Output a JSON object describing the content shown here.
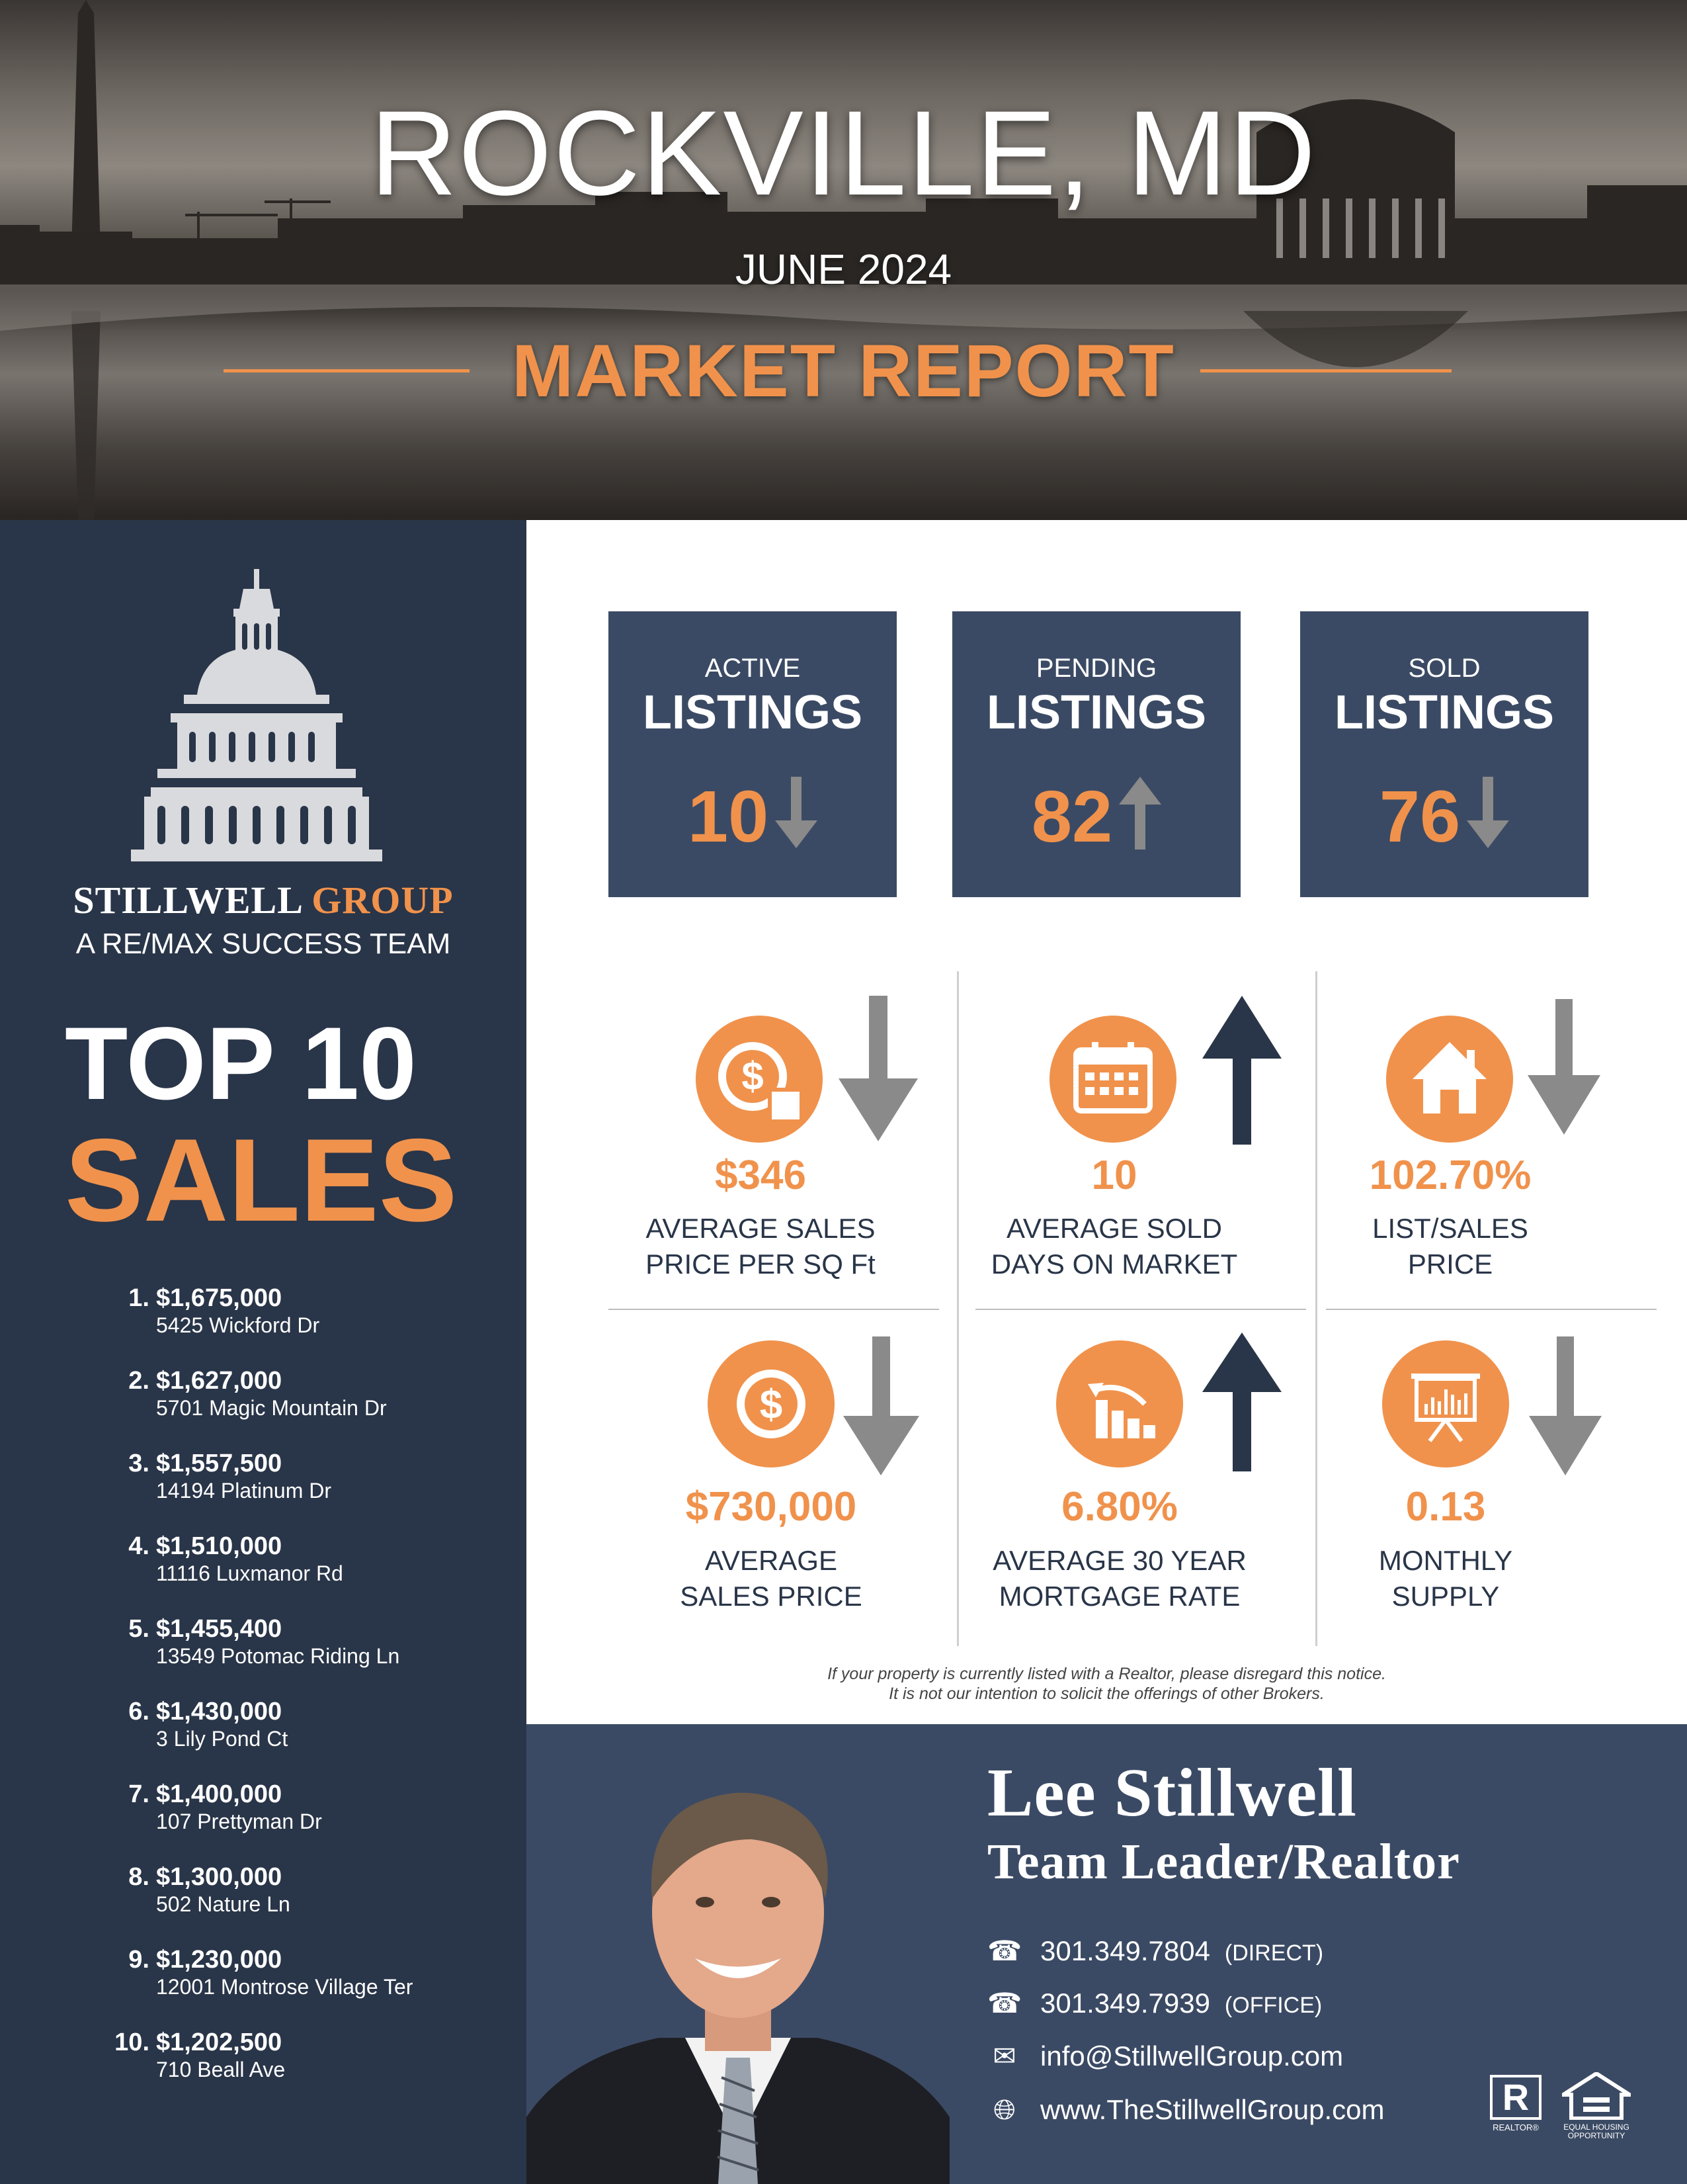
{
  "header": {
    "city": "ROCKVILLE, MD",
    "date": "JUNE 2024",
    "report_title": "MARKET REPORT"
  },
  "brand": {
    "name_part1": "STILLWELL",
    "name_part2": "GROUP",
    "tagline": "A RE/MAX SUCCESS TEAM",
    "logo_icon": "capitol-dome-icon"
  },
  "top_sales": {
    "title_line1": "TOP 10",
    "title_line2": "SALES",
    "items": [
      {
        "rank": "1.",
        "price": "$1,675,000",
        "address": "5425 Wickford Dr"
      },
      {
        "rank": "2.",
        "price": "$1,627,000",
        "address": "5701 Magic Mountain Dr"
      },
      {
        "rank": "3.",
        "price": "$1,557,500",
        "address": "14194 Platinum Dr"
      },
      {
        "rank": "4.",
        "price": "$1,510,000",
        "address": "11116 Luxmanor Rd"
      },
      {
        "rank": "5.",
        "price": "$1,455,400",
        "address": "13549 Potomac Riding Ln"
      },
      {
        "rank": "6.",
        "price": "$1,430,000",
        "address": "3 Lily Pond Ct"
      },
      {
        "rank": "7.",
        "price": "$1,400,000",
        "address": "107 Prettyman Dr"
      },
      {
        "rank": "8.",
        "price": "$1,300,000",
        "address": "502 Nature Ln"
      },
      {
        "rank": "9.",
        "price": "$1,230,000",
        "address": "12001 Montrose Village Ter"
      },
      {
        "rank": "10.",
        "price": "$1,202,500",
        "address": "710 Beall Ave"
      }
    ]
  },
  "listings": [
    {
      "label_small": "ACTIVE",
      "label_big": "LISTINGS",
      "value": "10",
      "trend": "down"
    },
    {
      "label_small": "PENDING",
      "label_big": "LISTINGS",
      "value": "82",
      "trend": "up"
    },
    {
      "label_small": "SOLD",
      "label_big": "LISTINGS",
      "value": "76",
      "trend": "down"
    }
  ],
  "metrics": [
    {
      "icon": "dollar-sign-square-icon",
      "value": "$346",
      "label_line1": "AVERAGE SALES",
      "label_line2": "PRICE PER SQ Ft",
      "trend": "down",
      "trend_color": "#8a8a8a"
    },
    {
      "icon": "calendar-icon",
      "value": "10",
      "label_line1": "AVERAGE SOLD",
      "label_line2": "DAYS ON MARKET",
      "trend": "up",
      "trend_color": "#293548"
    },
    {
      "icon": "house-icon",
      "value": "102.70%",
      "label_line1": "LIST/SALES",
      "label_line2": "PRICE",
      "trend": "down",
      "trend_color": "#8a8a8a"
    },
    {
      "icon": "dollar-coin-icon",
      "value": "$730,000",
      "label_line1": "AVERAGE",
      "label_line2": "SALES PRICE",
      "trend": "down",
      "trend_color": "#8a8a8a"
    },
    {
      "icon": "declining-bar-chart-icon",
      "value": "6.80%",
      "label_line1": "AVERAGE 30 YEAR",
      "label_line2": "MORTGAGE RATE",
      "trend": "up",
      "trend_color": "#293548"
    },
    {
      "icon": "presentation-board-icon",
      "value": "0.13",
      "label_line1": "MONTHLY",
      "label_line2": "SUPPLY",
      "trend": "down",
      "trend_color": "#8a8a8a"
    }
  ],
  "disclaimer": {
    "line1": "If your property is currently listed with a Realtor, please disregard this notice.",
    "line2": "It is not our intention to solicit the offerings of other Brokers."
  },
  "agent": {
    "name": "Lee Stillwell",
    "title": "Team Leader/Realtor",
    "phone_direct": "301.349.7804",
    "phone_direct_tag": "(DIRECT)",
    "phone_office": "301.349.7939",
    "phone_office_tag": "(OFFICE)",
    "email": "info@StillwellGroup.com",
    "website": "www.TheStillwellGroup.com",
    "photo_icon": "agent-portrait-icon"
  },
  "badges": {
    "realtor_letter": "R",
    "realtor_label": "REALTOR®",
    "eho_line1": "EQUAL HOUSING",
    "eho_line2": "OPPORTUNITY"
  },
  "colors": {
    "navy": "#293548",
    "slate": "#3b4a64",
    "orange": "#f0924c",
    "gray_arrow": "#8a8a8a"
  }
}
